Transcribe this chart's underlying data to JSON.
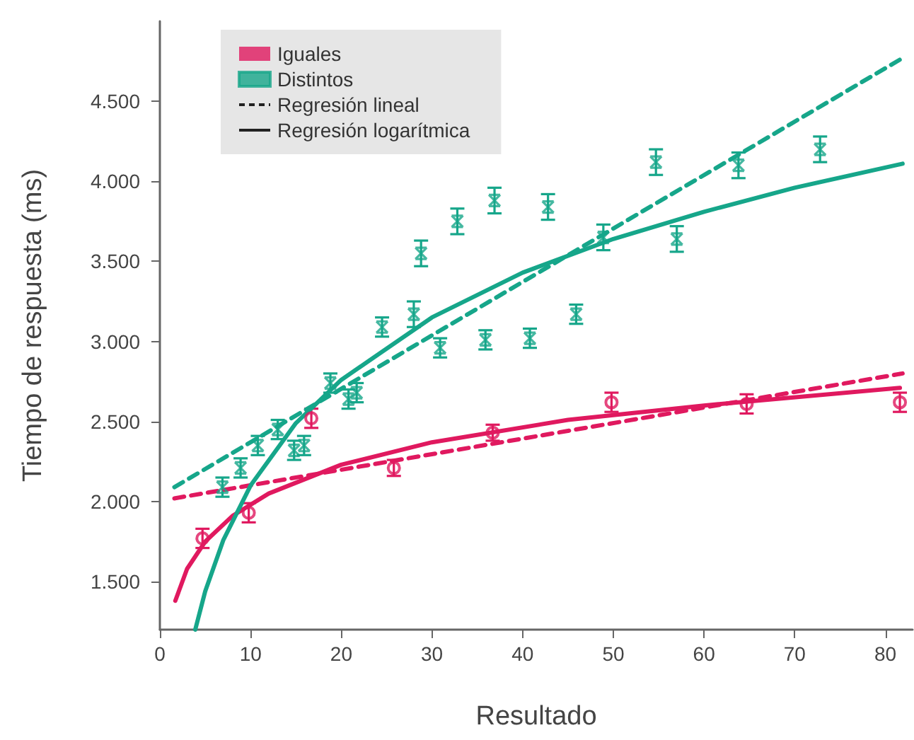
{
  "chart_data": {
    "type": "scatter",
    "xlabel": "Resultado",
    "ylabel": "Tiempo de respuesta (ms)",
    "xlim": [
      0,
      83
    ],
    "xticks": [
      0,
      10,
      20,
      30,
      40,
      50,
      60,
      70,
      80
    ],
    "ylim": [
      1200,
      5000
    ],
    "yticks": [
      {
        "value": 1500,
        "label": "1.500"
      },
      {
        "value": 2000,
        "label": "2.000"
      },
      {
        "value": 2500,
        "label": "2.500"
      },
      {
        "value": 3000,
        "label": "3.000"
      },
      {
        "value": 3500,
        "label": "3.500"
      },
      {
        "value": 4000,
        "label": "4.000"
      },
      {
        "value": 4500,
        "label": "4.500"
      }
    ],
    "grid": false,
    "legend": "top left",
    "annotations": [
      "Regresión lineal",
      "Regresión logarítmica"
    ],
    "series": [
      {
        "name": "Iguales",
        "color": "#e0195f",
        "marker": "circle",
        "x": [
          4.7,
          9.8,
          16.7,
          25.8,
          36.7,
          49.8,
          64.7,
          81.6
        ],
        "values": [
          1770,
          1930,
          2520,
          2210,
          2430,
          2620,
          2610,
          2620
        ],
        "errors": [
          60,
          60,
          60,
          50,
          50,
          60,
          60,
          60
        ]
      },
      {
        "name": "Distintos",
        "color": "#16a68a",
        "marker": "cross",
        "x": [
          6.9,
          8.9,
          10.8,
          13.0,
          14.8,
          15.9,
          18.8,
          20.8,
          21.7,
          24.5,
          28.0,
          28.8,
          30.9,
          32.8,
          35.9,
          36.9,
          40.8,
          42.8,
          45.9,
          48.9,
          54.7,
          57.0,
          63.8,
          72.8
        ],
        "values": [
          2090,
          2210,
          2350,
          2450,
          2320,
          2350,
          2740,
          2640,
          2680,
          3090,
          3170,
          3550,
          2960,
          3750,
          3010,
          3880,
          3020,
          3840,
          3170,
          3650,
          4120,
          3640,
          4100,
          4200
        ],
        "errors": [
          60,
          60,
          60,
          60,
          60,
          60,
          60,
          60,
          60,
          60,
          80,
          80,
          60,
          80,
          60,
          80,
          60,
          80,
          60,
          80,
          80,
          80,
          80,
          80
        ]
      },
      {
        "type": "line",
        "color": "#e0195f",
        "line_style": "dashed",
        "marker": "none",
        "x": [
          1.6,
          81.9
        ],
        "values": [
          2020,
          2800
        ]
      },
      {
        "type": "line",
        "color": "#16a68a",
        "line_style": "dashed",
        "marker": "none",
        "x": [
          1.6,
          81.9
        ],
        "values": [
          2090,
          4770
        ]
      },
      {
        "type": "line",
        "color": "#e0195f",
        "line_style": "solid",
        "marker": "none",
        "x": [
          1.7,
          3,
          5,
          8,
          12,
          20,
          30,
          45,
          60,
          81.6
        ],
        "values": [
          1380,
          1580,
          1750,
          1910,
          2050,
          2230,
          2370,
          2510,
          2600,
          2710
        ]
      },
      {
        "type": "line",
        "color": "#16a68a",
        "line_style": "solid",
        "marker": "none",
        "x": [
          3.9,
          5,
          7,
          10,
          15,
          20,
          30,
          40,
          50,
          60,
          70,
          81.9
        ],
        "values": [
          1200,
          1440,
          1760,
          2100,
          2490,
          2760,
          3150,
          3430,
          3640,
          3810,
          3960,
          4110
        ]
      }
    ]
  }
}
